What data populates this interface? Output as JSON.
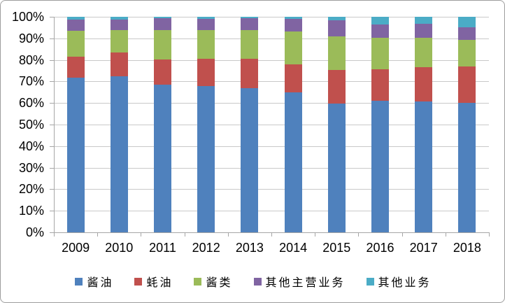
{
  "chart_data": {
    "type": "bar",
    "variant": "stacked-100-percent",
    "title": "",
    "xlabel": "",
    "ylabel": "",
    "ylim": [
      0,
      100
    ],
    "grid": "horizontal",
    "legend_position": "bottom",
    "y_ticks": [
      "100%",
      "90%",
      "80%",
      "70%",
      "60%",
      "50%",
      "40%",
      "30%",
      "20%",
      "10%",
      "0%"
    ],
    "categories": [
      "2009",
      "2010",
      "2011",
      "2012",
      "2013",
      "2014",
      "2015",
      "2016",
      "2017",
      "2018"
    ],
    "series": [
      {
        "name": "酱油",
        "color": "#4F81BD",
        "values": [
          71.7,
          72.3,
          68.4,
          67.8,
          66.9,
          64.8,
          59.7,
          61.0,
          60.6,
          60.0
        ]
      },
      {
        "name": "蚝油",
        "color": "#C0504D",
        "values": [
          9.7,
          11.2,
          11.9,
          12.7,
          13.7,
          13.2,
          15.6,
          14.7,
          16.0,
          17.1
        ]
      },
      {
        "name": "酱类",
        "color": "#9BBB59",
        "values": [
          12.1,
          10.5,
          13.5,
          13.4,
          13.4,
          15.2,
          15.7,
          14.5,
          13.7,
          12.3
        ]
      },
      {
        "name": "其他主营业务",
        "color": "#8064A2",
        "values": [
          5.1,
          4.6,
          5.4,
          5.3,
          5.4,
          5.7,
          7.5,
          6.4,
          6.5,
          5.9
        ]
      },
      {
        "name": "其他业务",
        "color": "#4BACC6",
        "values": [
          1.4,
          1.4,
          0.8,
          0.8,
          0.6,
          1.1,
          1.5,
          3.4,
          3.2,
          4.7
        ]
      }
    ],
    "colors": {
      "gridline": "#C9C9C9",
      "axis": "#A6A6A6",
      "frame_border": "#9D9D9D",
      "background": "#FFFFFF"
    }
  }
}
